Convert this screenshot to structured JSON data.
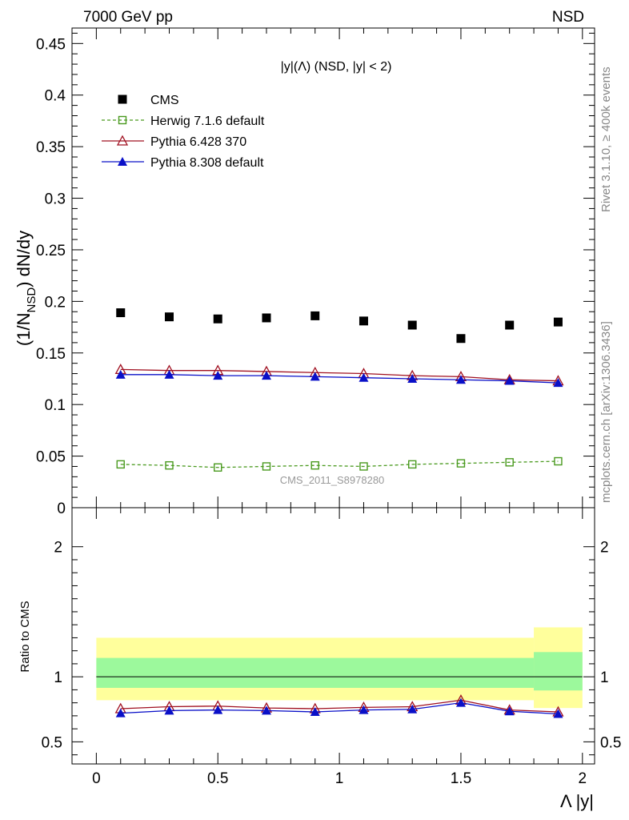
{
  "header": {
    "beam": "7000 GeV pp",
    "process": "NSD",
    "side_rivet": "Rivet 3.1.10, ≥ 400k events",
    "side_mcplots": "mcplots.cern.ch [arXiv:1306.3436]",
    "watermark": "CMS_2011_S8978280"
  },
  "chart_data": [
    {
      "type": "scatter",
      "panel": "main",
      "title": "|y|(Λ) (NSD, |y| < 2)",
      "ylabel": "(1/N_NSD) dN/dy",
      "ylabel_parts": {
        "pre": "(1/N",
        "sub": "NSD",
        "post": ") dN/dy"
      },
      "xlim": [
        -0.1,
        2.05
      ],
      "ylim": [
        0,
        0.465
      ],
      "yticks": [
        "0",
        "0.05",
        "0.1",
        "0.15",
        "0.2",
        "0.25",
        "0.3",
        "0.35",
        "0.4",
        "0.45"
      ],
      "x": [
        0.1,
        0.3,
        0.5,
        0.7,
        0.9,
        1.1,
        1.3,
        1.5,
        1.7,
        1.9
      ],
      "legend_position": "top-left",
      "series": [
        {
          "name": "CMS",
          "color": "#000000",
          "marker": "square-filled",
          "line": "none",
          "values": [
            0.189,
            0.185,
            0.183,
            0.184,
            0.186,
            0.181,
            0.177,
            0.164,
            0.177,
            0.18
          ]
        },
        {
          "name": "Herwig 7.1.6 default",
          "color": "#4a9a1f",
          "marker": "square-open",
          "line": "dashed",
          "values": [
            0.042,
            0.041,
            0.039,
            0.04,
            0.041,
            0.04,
            0.042,
            0.043,
            0.044,
            0.045
          ]
        },
        {
          "name": "Pythia 6.428 370",
          "color": "#a01020",
          "marker": "triangle-open",
          "line": "solid",
          "values": [
            0.134,
            0.133,
            0.133,
            0.132,
            0.131,
            0.13,
            0.128,
            0.127,
            0.124,
            0.123
          ]
        },
        {
          "name": "Pythia 8.308 default",
          "color": "#0a10c8",
          "marker": "triangle-filled",
          "line": "solid",
          "values": [
            0.129,
            0.129,
            0.128,
            0.128,
            0.127,
            0.126,
            0.125,
            0.124,
            0.123,
            0.121
          ]
        }
      ]
    },
    {
      "type": "line",
      "panel": "ratio",
      "ylabel": "Ratio to CMS",
      "xlabel": "Λ |y|",
      "xlim": [
        -0.1,
        2.05
      ],
      "ylim": [
        0.33,
        2.3
      ],
      "xticks": [
        "0",
        "0.5",
        "1",
        "1.5",
        "2"
      ],
      "yticks": [
        "0.5",
        "1",
        "2"
      ],
      "x": [
        0.1,
        0.3,
        0.5,
        0.7,
        0.9,
        1.1,
        1.3,
        1.5,
        1.7,
        1.9
      ],
      "bands": [
        {
          "x_range": [
            0,
            1.8
          ],
          "inner": [
            0.915,
            1.145
          ],
          "outer": [
            0.82,
            1.3
          ]
        },
        {
          "x_range": [
            1.8,
            2.0
          ],
          "inner": [
            0.895,
            1.19
          ],
          "outer": [
            0.76,
            1.38
          ]
        }
      ],
      "band_colors": {
        "inner": "#9cf99c",
        "outer": "#ffff9c"
      },
      "reference": 1,
      "series": [
        {
          "name": "Pythia 6.428 370",
          "color": "#a01020",
          "marker": "triangle-open",
          "values": [
            0.755,
            0.77,
            0.775,
            0.76,
            0.755,
            0.765,
            0.77,
            0.82,
            0.745,
            0.73
          ]
        },
        {
          "name": "Pythia 8.308 default",
          "color": "#0a10c8",
          "marker": "triangle-filled",
          "values": [
            0.72,
            0.74,
            0.745,
            0.74,
            0.73,
            0.745,
            0.75,
            0.8,
            0.735,
            0.715
          ]
        }
      ]
    }
  ]
}
